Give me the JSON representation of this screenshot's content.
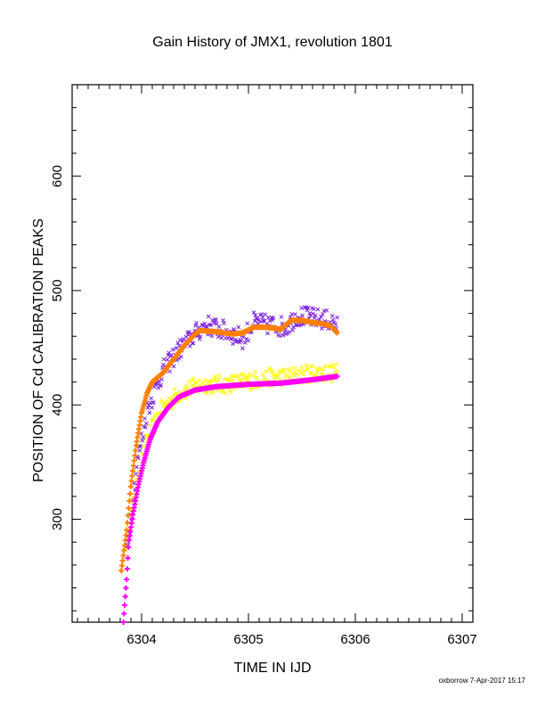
{
  "chart_data": {
    "type": "scatter",
    "title": "Gain History of JMX1, revolution 1801",
    "xlabel": "TIME IN IJD",
    "ylabel": "POSITION OF Cd CALIBRATION PEAKS",
    "xlim": [
      6303.35,
      6307.1
    ],
    "ylim": [
      210,
      680
    ],
    "x_ticks": [
      6304,
      6305,
      6306,
      6307
    ],
    "y_ticks": [
      300,
      400,
      500,
      600
    ],
    "grid": false,
    "series": [
      {
        "marker": "x",
        "color": "#7b1fe0",
        "x_range": [
          6303.87,
          6305.83
        ],
        "x": [
          6303.87,
          6303.95,
          6304.05,
          6304.2,
          6304.35,
          6304.5,
          6304.6,
          6304.8,
          6304.95,
          6305.05,
          6305.2,
          6305.35,
          6305.45,
          6305.6,
          6305.75,
          6305.83
        ],
        "y": [
          275,
          345,
          395,
          430,
          448,
          462,
          470,
          464,
          458,
          472,
          470,
          468,
          478,
          476,
          474,
          470
        ],
        "spread": 9
      },
      {
        "marker": "x",
        "color": "#ffff00",
        "x_range": [
          6303.85,
          6305.83
        ],
        "x": [
          6303.85,
          6303.95,
          6304.05,
          6304.2,
          6304.35,
          6304.5,
          6304.6,
          6304.8,
          6305.0,
          6305.2,
          6305.4,
          6305.6,
          6305.8
        ],
        "y": [
          280,
          330,
          370,
          398,
          410,
          416,
          418,
          418,
          421,
          424,
          425,
          428,
          428
        ],
        "spread": 8
      },
      {
        "marker": "+",
        "color": "#ff8000",
        "x": [
          6303.81,
          6303.86,
          6303.9,
          6303.95,
          6304.0,
          6304.05,
          6304.1,
          6304.2,
          6304.3,
          6304.4,
          6304.5,
          6304.55,
          6304.7,
          6304.85,
          6304.95,
          6305.05,
          6305.15,
          6305.25,
          6305.3,
          6305.4,
          6305.5,
          6305.6,
          6305.7,
          6305.77,
          6305.83
        ],
        "y": [
          255,
          290,
          330,
          365,
          393,
          410,
          420,
          428,
          440,
          452,
          462,
          465,
          464,
          462,
          463,
          468,
          468,
          467,
          466,
          474,
          474,
          472,
          471,
          469,
          463
        ]
      },
      {
        "marker": "+",
        "color": "#ff00ff",
        "x": [
          6303.83,
          6303.86,
          6303.88,
          6303.92,
          6303.97,
          6304.02,
          6304.08,
          6304.15,
          6304.25,
          6304.35,
          6304.5,
          6304.7,
          6305.0,
          6305.3,
          6305.6,
          6305.83
        ],
        "y": [
          210,
          248,
          280,
          305,
          330,
          350,
          370,
          385,
          398,
          407,
          413,
          416,
          418,
          419,
          422,
          425
        ]
      }
    ]
  },
  "footer": "oxborrow  7-Apr-2017 15:17"
}
